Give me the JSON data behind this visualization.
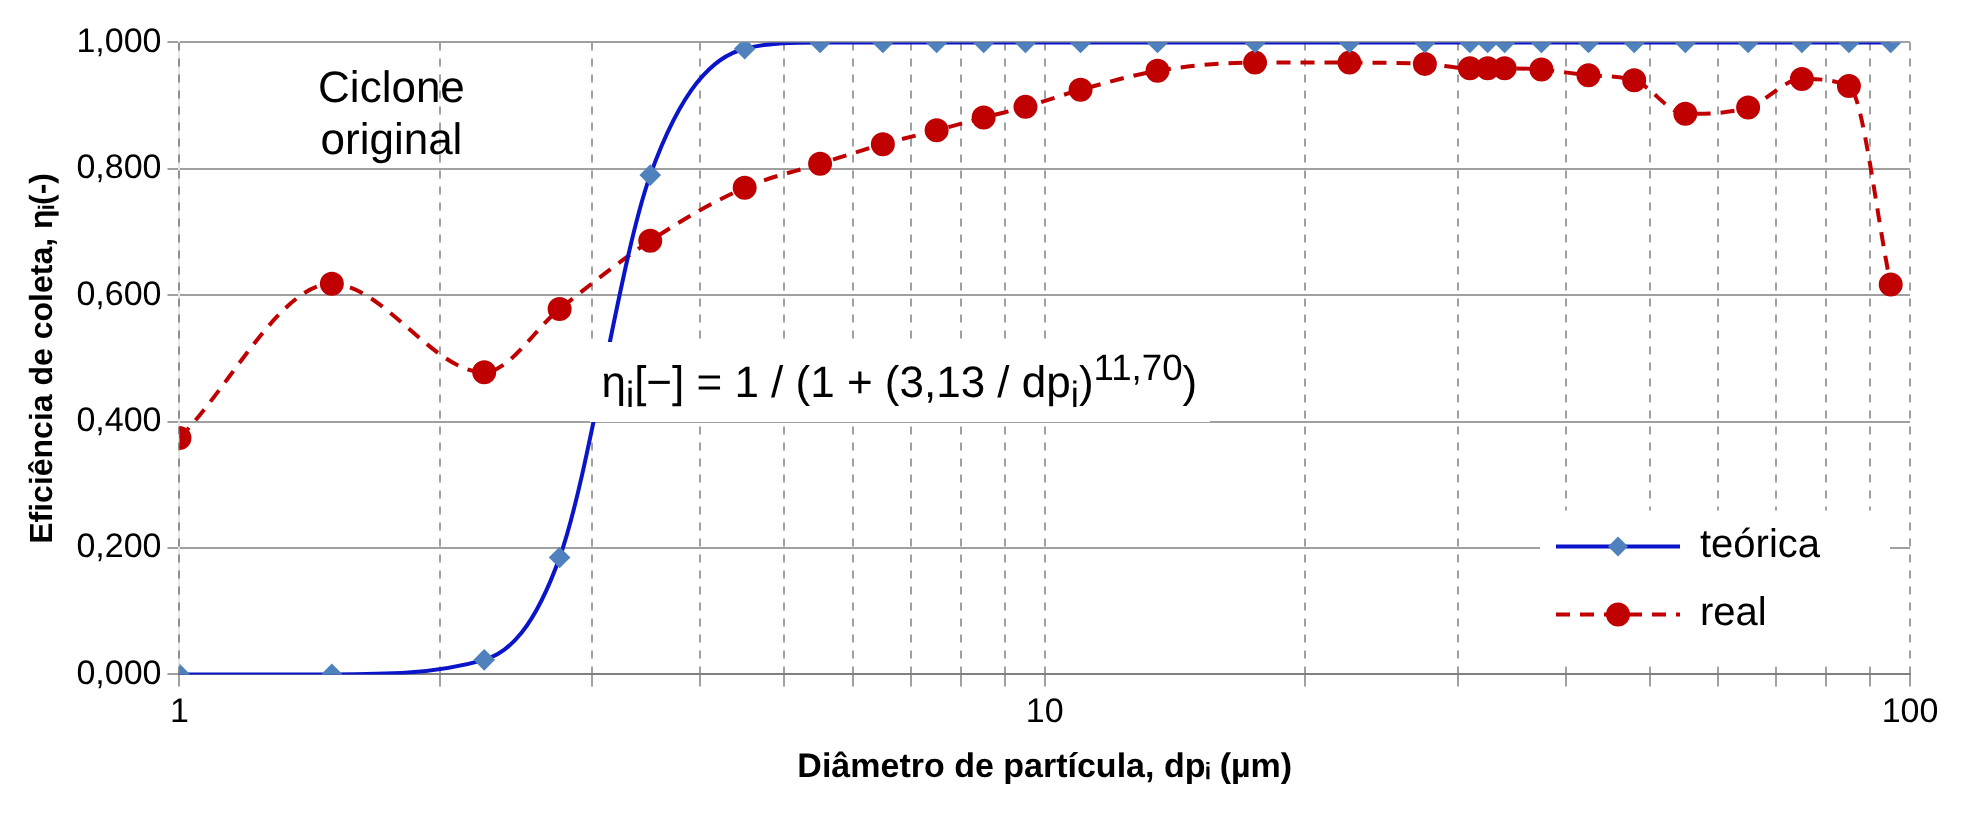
{
  "chart_data": {
    "type": "line",
    "xlabel": "Diâmetro de partícula, dpᵢ (µm)",
    "ylabel": "Eficiência de coleta, ηᵢ(-)",
    "x": [
      1,
      1.5,
      2.25,
      2.75,
      3.5,
      4.5,
      5.5,
      6.5,
      7.5,
      8.5,
      9.5,
      11,
      13.5,
      17.5,
      22.5,
      27.5,
      31,
      32.5,
      34,
      37.5,
      42.5,
      48,
      55,
      65,
      75,
      85,
      95
    ],
    "series": [
      {
        "name": "teórica",
        "color": "#0a14c8",
        "marker": "diamond",
        "line_style": "solid",
        "values": [
          0,
          0,
          0.023,
          0.185,
          0.79,
          0.99,
          1,
          1,
          1,
          1,
          1,
          1,
          1,
          1,
          1,
          1,
          1,
          1,
          1,
          1,
          1,
          1,
          1,
          1,
          1,
          1,
          1
        ]
      },
      {
        "name": "real",
        "color": "#c00000",
        "marker": "circle",
        "line_style": "dashed",
        "values": [
          0.374,
          0.618,
          0.478,
          0.578,
          0.686,
          0.77,
          0.808,
          0.839,
          0.861,
          0.881,
          0.898,
          0.925,
          0.955,
          0.968,
          0.968,
          0.966,
          0.959,
          0.959,
          0.959,
          0.957,
          0.948,
          0.94,
          0.887,
          0.897,
          0.942,
          0.931,
          0.617
        ]
      }
    ],
    "log": "x",
    "xlim": [
      1,
      100
    ],
    "xticks": [
      1,
      {
        "value": 2,
        "label": null
      },
      {
        "value": 3,
        "label": null
      },
      {
        "value": 4,
        "label": null
      },
      {
        "value": 5,
        "label": null
      },
      {
        "value": 6,
        "label": null
      },
      {
        "value": 7,
        "label": null
      },
      {
        "value": 8,
        "label": null
      },
      {
        "value": 9,
        "label": null
      },
      10,
      {
        "value": 20,
        "label": null
      },
      {
        "value": 30,
        "label": null
      },
      {
        "value": 40,
        "label": null
      },
      {
        "value": 50,
        "label": null
      },
      {
        "value": 60,
        "label": null
      },
      {
        "value": 70,
        "label": null
      },
      {
        "value": 80,
        "label": null
      },
      {
        "value": 90,
        "label": null
      },
      100
    ],
    "ylim": [
      0,
      1
    ],
    "yticks": [
      {
        "value": 0,
        "label": "0,000"
      },
      {
        "value": 0.2,
        "label": "0,200"
      },
      {
        "value": 0.4,
        "label": "0,400"
      },
      {
        "value": 0.6,
        "label": "0,600"
      },
      {
        "value": 0.8,
        "label": "0,800"
      },
      {
        "value": 1,
        "label": "1,000"
      }
    ],
    "grid": true,
    "legend": "bottom right",
    "annotations": [
      "Ciclone original",
      "η$_{i}$[−] = 1 / (1 + (3,13 / dp$_{i}$)$^{11,70}$)"
    ]
  }
}
